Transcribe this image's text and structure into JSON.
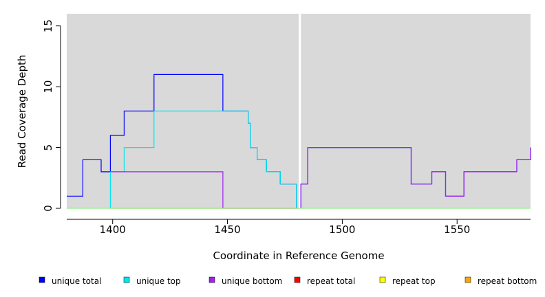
{
  "chart_data": {
    "type": "line",
    "step": true,
    "xlabel": "Coordinate in Reference Genome",
    "ylabel": "Read Coverage Depth",
    "xlim": [
      1380,
      1582
    ],
    "ylim": [
      0,
      16
    ],
    "x_ticks": [
      1400,
      1450,
      1500,
      1550
    ],
    "y_ticks": [
      0,
      5,
      10,
      15
    ],
    "background": "#d9d9d9",
    "gap": {
      "x_start": 1481,
      "x_end": 1482
    },
    "legend_position": "bottom",
    "series": [
      {
        "name": "unique total",
        "color": "#0000ff",
        "points": [
          [
            1380,
            1
          ],
          [
            1387,
            1
          ],
          [
            1387,
            4
          ],
          [
            1395,
            4
          ],
          [
            1395,
            3
          ],
          [
            1399,
            3
          ],
          [
            1399,
            6
          ],
          [
            1405,
            6
          ],
          [
            1405,
            8
          ],
          [
            1418,
            8
          ],
          [
            1418,
            11
          ],
          [
            1448,
            11
          ],
          [
            1448,
            8
          ],
          [
            1459,
            8
          ],
          [
            1459,
            7
          ],
          [
            1460,
            7
          ],
          [
            1460,
            5
          ],
          [
            1463,
            5
          ],
          [
            1463,
            4
          ],
          [
            1467,
            4
          ],
          [
            1467,
            3
          ],
          [
            1473,
            3
          ],
          [
            1473,
            2
          ],
          [
            1480,
            2
          ],
          [
            1480,
            0
          ]
        ]
      },
      {
        "name": "unique total",
        "color": "#0000ff",
        "points": [
          [
            1482,
            0
          ],
          [
            1482,
            2
          ],
          [
            1485,
            2
          ],
          [
            1485,
            5
          ],
          [
            1530,
            5
          ],
          [
            1530,
            2
          ],
          [
            1539,
            2
          ],
          [
            1539,
            3
          ],
          [
            1545,
            3
          ],
          [
            1545,
            1
          ],
          [
            1553,
            1
          ],
          [
            1553,
            3
          ],
          [
            1576,
            3
          ],
          [
            1576,
            4
          ],
          [
            1582,
            4
          ],
          [
            1582,
            5
          ]
        ]
      },
      {
        "name": "unique top",
        "color": "#00e5ee",
        "points": [
          [
            1399,
            0
          ],
          [
            1399,
            3
          ],
          [
            1405,
            3
          ],
          [
            1405,
            5
          ],
          [
            1418,
            5
          ],
          [
            1418,
            8
          ],
          [
            1459,
            8
          ],
          [
            1459,
            7
          ],
          [
            1460,
            7
          ],
          [
            1460,
            5
          ],
          [
            1463,
            5
          ],
          [
            1463,
            4
          ],
          [
            1467,
            4
          ],
          [
            1467,
            3
          ],
          [
            1473,
            3
          ],
          [
            1473,
            2
          ],
          [
            1480,
            2
          ],
          [
            1480,
            0
          ]
        ]
      },
      {
        "name": "unique bottom",
        "color": "#a020f0",
        "points": [
          [
            1399,
            3
          ],
          [
            1448,
            3
          ],
          [
            1448,
            0
          ]
        ]
      },
      {
        "name": "unique bottom",
        "color": "#a020f0",
        "points": [
          [
            1482,
            0
          ],
          [
            1482,
            2
          ],
          [
            1485,
            2
          ],
          [
            1485,
            5
          ],
          [
            1530,
            5
          ],
          [
            1530,
            2
          ],
          [
            1539,
            2
          ],
          [
            1539,
            3
          ],
          [
            1545,
            3
          ],
          [
            1545,
            1
          ],
          [
            1553,
            1
          ],
          [
            1553,
            3
          ],
          [
            1576,
            3
          ],
          [
            1576,
            4
          ],
          [
            1582,
            4
          ],
          [
            1582,
            5
          ]
        ]
      },
      {
        "name": "repeat total",
        "color": "#ff0000",
        "points": [
          [
            1448,
            0
          ],
          [
            1481,
            0
          ]
        ]
      },
      {
        "name": "repeat top",
        "color": "#ffff00",
        "points": []
      },
      {
        "name": "repeat bottom",
        "color": "#ffa500",
        "points": [
          [
            1399,
            0
          ],
          [
            1448,
            0
          ]
        ]
      },
      {
        "name": "baseline",
        "color": "#90ee90",
        "points": [
          [
            1380,
            0
          ],
          [
            1582,
            0
          ]
        ]
      }
    ],
    "legend": [
      {
        "label": "unique total",
        "color": "#0000ff"
      },
      {
        "label": "unique top",
        "color": "#00e5ee"
      },
      {
        "label": "unique bottom",
        "color": "#a020f0"
      },
      {
        "label": "repeat total",
        "color": "#ff0000"
      },
      {
        "label": "repeat top",
        "color": "#ffff00"
      },
      {
        "label": "repeat bottom",
        "color": "#ffa500"
      }
    ]
  }
}
